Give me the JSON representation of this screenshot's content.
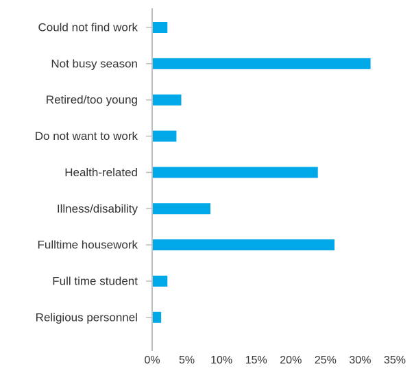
{
  "chart_data": {
    "type": "bar",
    "orientation": "horizontal",
    "title": "",
    "xlabel": "",
    "ylabel": "",
    "categories": [
      "Could not find work",
      "Not busy season",
      "Retired/too young",
      "Do not want to work",
      "Health-related",
      "Illness/disability",
      "Fulltime housework",
      "Full time student",
      "Religious personnel"
    ],
    "values": [
      2.2,
      31.5,
      4.2,
      3.5,
      23.9,
      8.4,
      26.3,
      2.2,
      1.3
    ],
    "value_unit": "%",
    "xlim": [
      0,
      35
    ],
    "xticks": [
      0,
      5,
      10,
      15,
      20,
      25,
      30,
      35
    ],
    "xtick_labels": [
      "0%",
      "5%",
      "10%",
      "15%",
      "20%",
      "25%",
      "30%",
      "35%"
    ],
    "grid": false,
    "legend": "none",
    "bar_color": "#00a8e8",
    "axis_color": "#bdbdbd"
  }
}
